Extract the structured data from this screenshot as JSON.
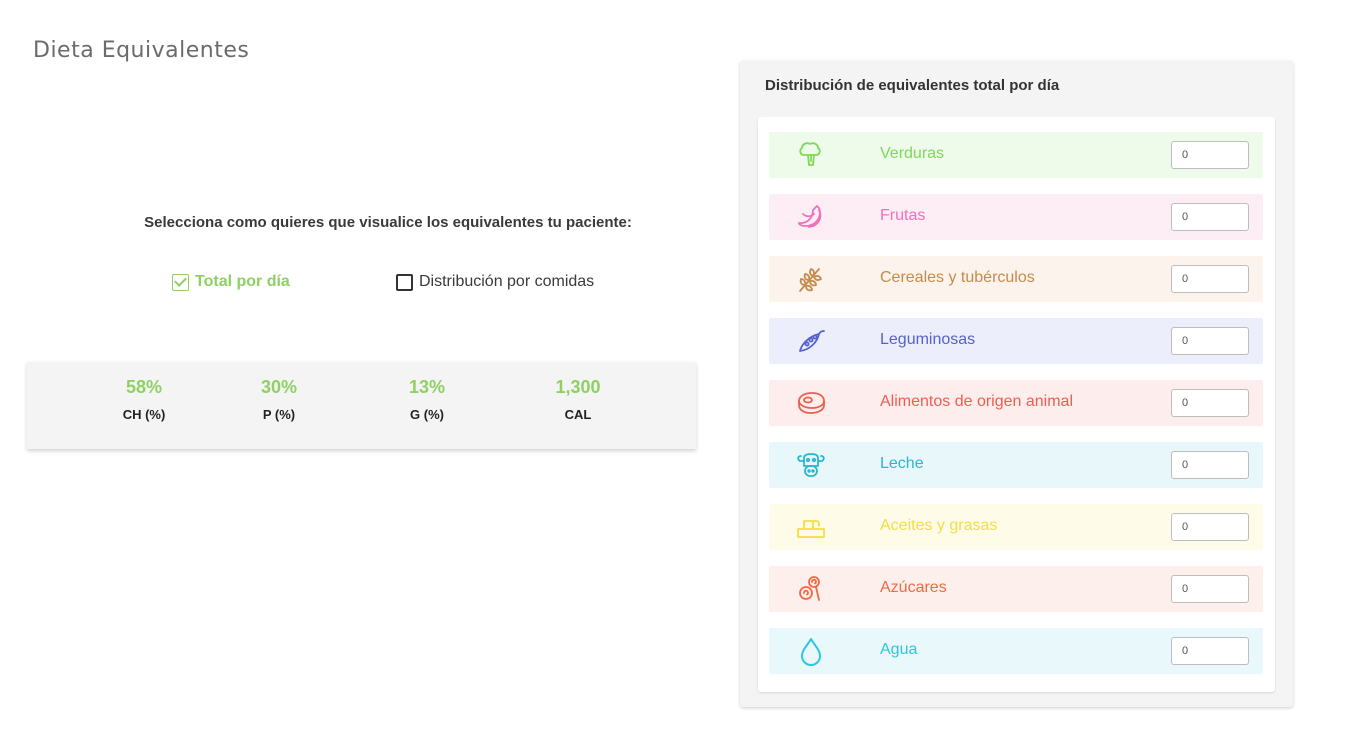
{
  "page": {
    "title": "Dieta Equivalentes"
  },
  "view_selector": {
    "prompt": "Selecciona como quieres que visualice los equivalentes tu paciente:",
    "options": [
      {
        "label": "Total por día",
        "checked": true
      },
      {
        "label": "Distribución por comidas",
        "checked": false
      }
    ]
  },
  "summary": {
    "stats": [
      {
        "value": "58%",
        "label": "CH (%)"
      },
      {
        "value": "30%",
        "label": "P (%)"
      },
      {
        "value": "13%",
        "label": "G (%)"
      },
      {
        "value": "1,300",
        "label": "CAL"
      }
    ]
  },
  "distribution": {
    "title": "Distribución de equivalentes total por día",
    "groups": [
      {
        "label": "Verduras",
        "value": "0",
        "icon": "broccoli-icon",
        "color": "#7ed957",
        "bg": "#eefaea"
      },
      {
        "label": "Frutas",
        "value": "0",
        "icon": "banana-icon",
        "color": "#f26fb9",
        "bg": "#fdeef6"
      },
      {
        "label": "Cereales y tubérculos",
        "value": "0",
        "icon": "wheat-icon",
        "color": "#c78a4a",
        "bg": "#fbf3ec"
      },
      {
        "label": "Leguminosas",
        "value": "0",
        "icon": "pea-pod-icon",
        "color": "#5561cf",
        "bg": "#eceefb"
      },
      {
        "label": "Alimentos de origen animal",
        "value": "0",
        "icon": "meat-icon",
        "color": "#ec5f4f",
        "bg": "#fdeeed"
      },
      {
        "label": "Leche",
        "value": "0",
        "icon": "cow-icon",
        "color": "#28b7d3",
        "bg": "#e8f7fa"
      },
      {
        "label": "Aceites y grasas",
        "value": "0",
        "icon": "butter-icon",
        "color": "#f5dd45",
        "bg": "#fefbe8"
      },
      {
        "label": "Azúcares",
        "value": "0",
        "icon": "lollipop-icon",
        "color": "#ef6a45",
        "bg": "#fdefeb"
      },
      {
        "label": "Agua",
        "value": "0",
        "icon": "water-drop-icon",
        "color": "#2ec6df",
        "bg": "#e9f8fb"
      }
    ]
  }
}
